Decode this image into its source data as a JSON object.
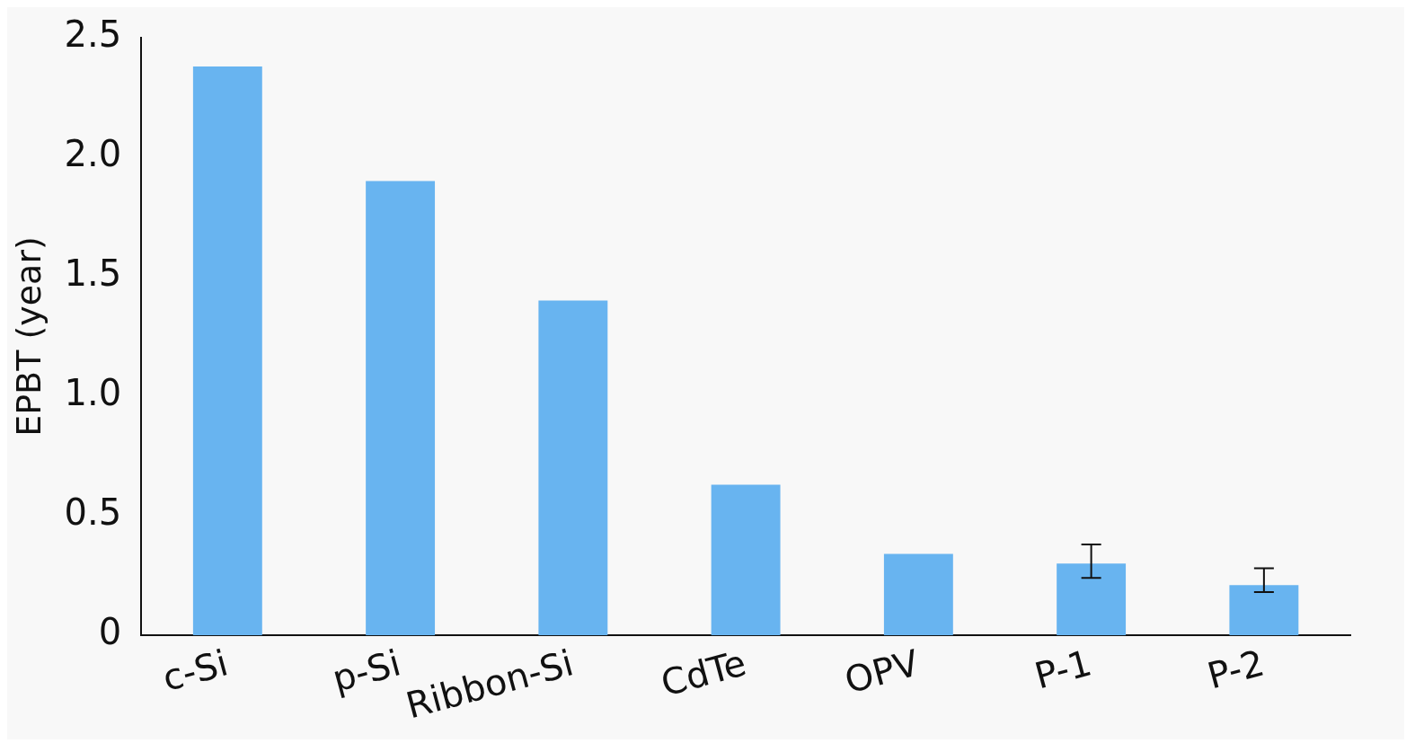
{
  "chart_data": {
    "type": "bar",
    "ylabel": "EPBT (year)",
    "categories": [
      "c-Si",
      "p-Si",
      "Ribbon-Si",
      "CdTe",
      "OPV",
      "P-1",
      "P-2"
    ],
    "values": [
      2.38,
      1.9,
      1.4,
      0.63,
      0.34,
      0.3,
      0.21
    ],
    "errors": [
      null,
      null,
      null,
      null,
      null,
      [
        0.24,
        0.38
      ],
      [
        0.18,
        0.28
      ]
    ],
    "color": "#68b4f0",
    "ylim": [
      0,
      2.5
    ],
    "yticks": [
      {
        "value": 0,
        "label": "0"
      },
      0.5,
      {
        "value": 1,
        "label": "1.0"
      },
      1.5,
      {
        "value": 2,
        "label": "2.0"
      },
      2.5
    ],
    "grid": false,
    "legend": false
  }
}
